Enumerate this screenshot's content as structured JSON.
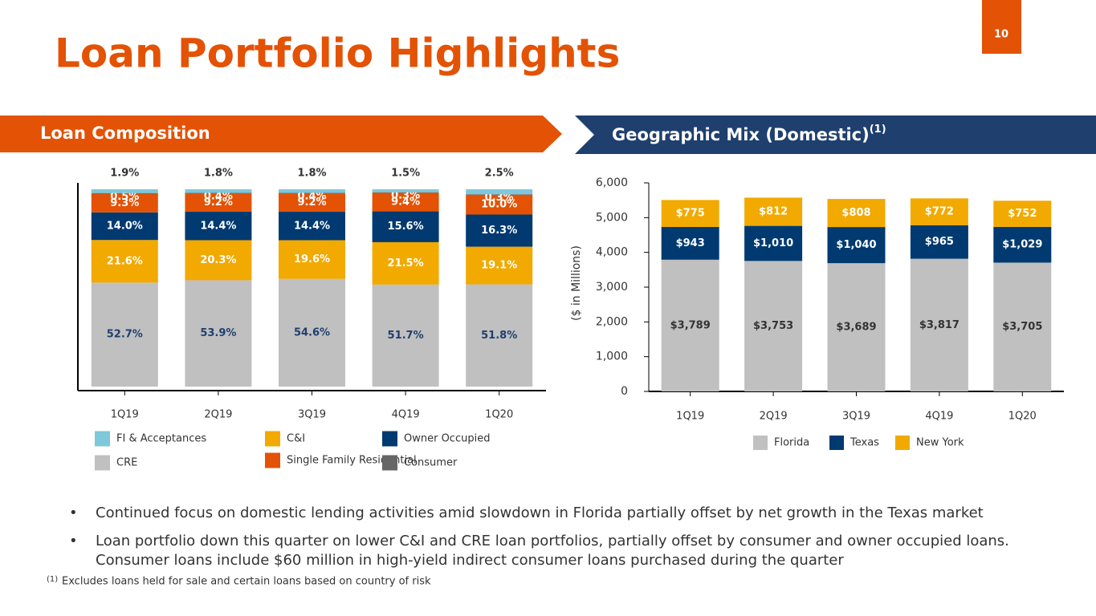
{
  "header": {
    "title": "Loan Portfolio Highlights",
    "page_number": "10"
  },
  "sections": {
    "left": "Loan Composition",
    "right": "Geographic Mix  (Domestic)",
    "right_note": "(1)"
  },
  "chart_data": [
    {
      "type": "bar",
      "stacked": true,
      "categories": [
        "1Q19",
        "2Q19",
        "3Q19",
        "4Q19",
        "1Q20"
      ],
      "series": [
        {
          "name": "CRE",
          "color": "#c0c0c0",
          "values": [
            52.7,
            53.9,
            54.6,
            51.7,
            51.8
          ],
          "value_labels": [
            "52.7%",
            "53.9%",
            "54.6%",
            "51.7%",
            "51.8%"
          ]
        },
        {
          "name": "C&I",
          "color": "#f2a900",
          "values": [
            21.6,
            20.3,
            19.6,
            21.5,
            19.1
          ],
          "value_labels": [
            "21.6%",
            "20.3%",
            "19.6%",
            "21.5%",
            "19.1%"
          ]
        },
        {
          "name": "Owner Occupied",
          "color": "#003a70",
          "values": [
            14.0,
            14.4,
            14.4,
            15.6,
            16.3
          ],
          "value_labels": [
            "14.0%",
            "14.4%",
            "14.4%",
            "15.6%",
            "16.3%"
          ]
        },
        {
          "name": "Single Family Residential",
          "color": "#e35205",
          "values": [
            9.3,
            9.2,
            9.2,
            9.4,
            10.0
          ],
          "value_labels": [
            "9.3%",
            "9.2%",
            "9.2%",
            "9.4%",
            "10.0%"
          ]
        },
        {
          "name": "Consumer",
          "color": "#666666",
          "values": [
            0.5,
            0.4,
            0.4,
            0.3,
            0.3
          ],
          "value_labels": [
            "0.5%",
            "0.4%",
            "0.4%",
            "0.3%",
            "0.3%"
          ]
        },
        {
          "name": "FI & Acceptances",
          "color": "#7ec8d9",
          "values": [
            1.9,
            1.8,
            1.8,
            1.5,
            2.5
          ],
          "value_labels": [
            "1.9%",
            "1.8%",
            "1.8%",
            "1.5%",
            "2.5%"
          ]
        }
      ]
    },
    {
      "type": "bar",
      "stacked": true,
      "ylabel": "($ in Millions)",
      "categories": [
        "1Q19",
        "2Q19",
        "3Q19",
        "4Q19",
        "1Q20"
      ],
      "ylim": [
        0,
        6000
      ],
      "yticks": [
        0,
        {
          "value": 1000,
          "label": "1,000"
        },
        {
          "value": 2000,
          "label": "2,000"
        },
        {
          "value": 3000,
          "label": "3,000"
        },
        {
          "value": 4000,
          "label": "4,000"
        },
        {
          "value": 5000,
          "label": "5,000"
        },
        {
          "value": 6000,
          "label": "6,000"
        }
      ],
      "series": [
        {
          "name": "Florida",
          "color": "#c0c0c0",
          "values": [
            3789,
            3753,
            3689,
            3817,
            3705
          ],
          "value_labels": [
            "$3,789",
            "$3,753",
            "$3,689",
            "$3,817",
            "$3,705"
          ]
        },
        {
          "name": "Texas",
          "color": "#003a70",
          "values": [
            943,
            1010,
            1040,
            965,
            1029
          ],
          "value_labels": [
            "$943",
            "$1,010",
            "$1,040",
            "$965",
            "$1,029"
          ]
        },
        {
          "name": "New York",
          "color": "#f2a900",
          "values": [
            775,
            812,
            808,
            772,
            752
          ],
          "value_labels": [
            "$775",
            "$812",
            "$808",
            "$772",
            "$752"
          ]
        }
      ]
    }
  ],
  "bullets": [
    "Continued focus on domestic lending activities amid slowdown in Florida partially offset by net growth in the Texas market",
    "Loan portfolio down this quarter on lower C&I and CRE loan portfolios, partially offset by consumer and owner occupied loans. Consumer loans include $60 million in high-yield indirect consumer loans purchased during the quarter"
  ],
  "footnote": {
    "marker": "(1)",
    "text": "Excludes loans held for sale and certain loans based on country of risk"
  }
}
